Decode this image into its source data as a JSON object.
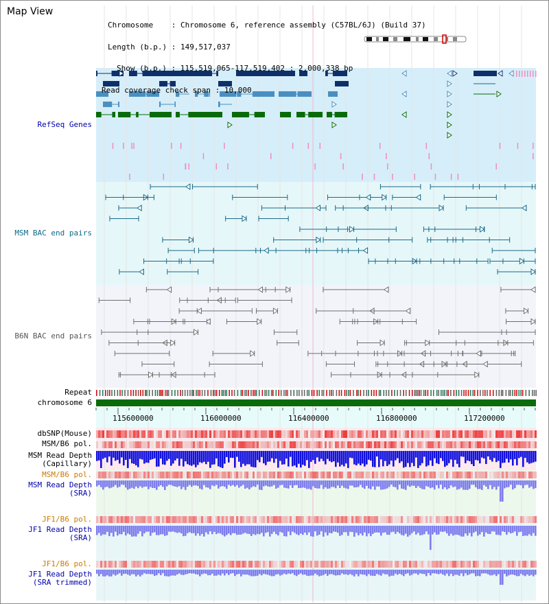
{
  "view_title": "Map View",
  "header": {
    "chromosome_label": "Chromosome",
    "chromosome_value": "Chromosome 6, reference assembly (C57BL/6J) (Build 37)",
    "length_label": "Length (b.p.)",
    "length_value": "149,517,037",
    "show_label": "Show (b.p.)",
    "show_value": "115,519,065-117,519,402 : 2,000,338 bp",
    "span_label": "Read coverage check span",
    "span_value": "10,000"
  },
  "tracks": {
    "refseq": "RefSeq Genes",
    "msm_bac": "MSM BAC end pairs",
    "b6n_bac": "B6N BAC end pairs",
    "repeat": "Repeat",
    "chromosome": "chromosome 6",
    "dbsnp": "dbSNP(Mouse)",
    "msm_pol": "MSM/B6 pol.",
    "msm_depth_cap_1": "MSM Read Depth",
    "msm_depth_cap_2": "(Capillary)",
    "msm_pol_2": "MSM/B6 pol.",
    "msm_depth_sra_1": "MSM Read Depth",
    "msm_depth_sra_2": "(SRA)",
    "jf1_pol": "JF1/B6 pol.",
    "jf1_depth_1": "JF1 Read Depth",
    "jf1_depth_2": "(SRA)",
    "jf1_pol_2": "JF1/B6 pol.",
    "jf1_trim_1": "JF1 Read Depth",
    "jf1_trim_2": "(SRA trimmed)"
  },
  "axis_ticks": [
    "115600000",
    "116000000",
    "116400000",
    "116800000",
    "117200000"
  ],
  "colors": {
    "refseq_bg": "#d6eef9",
    "bac_bg": "#e6f7f9",
    "b6n_bg": "#f2f4fa",
    "refseq_dark": "#0f2f6b",
    "refseq_mid": "#4a8fc0",
    "refseq_green": "#0a6a0a",
    "msm_line": "#176a88",
    "b6n_line": "#6e6e6e",
    "chrom": "#0b6b0b",
    "depth_dark": "#1111dd",
    "depth_light": "#7d7dee",
    "label_blue": "#0000aa",
    "label_orange": "#cc7a00",
    "label_teal": "#0a6a88"
  }
}
